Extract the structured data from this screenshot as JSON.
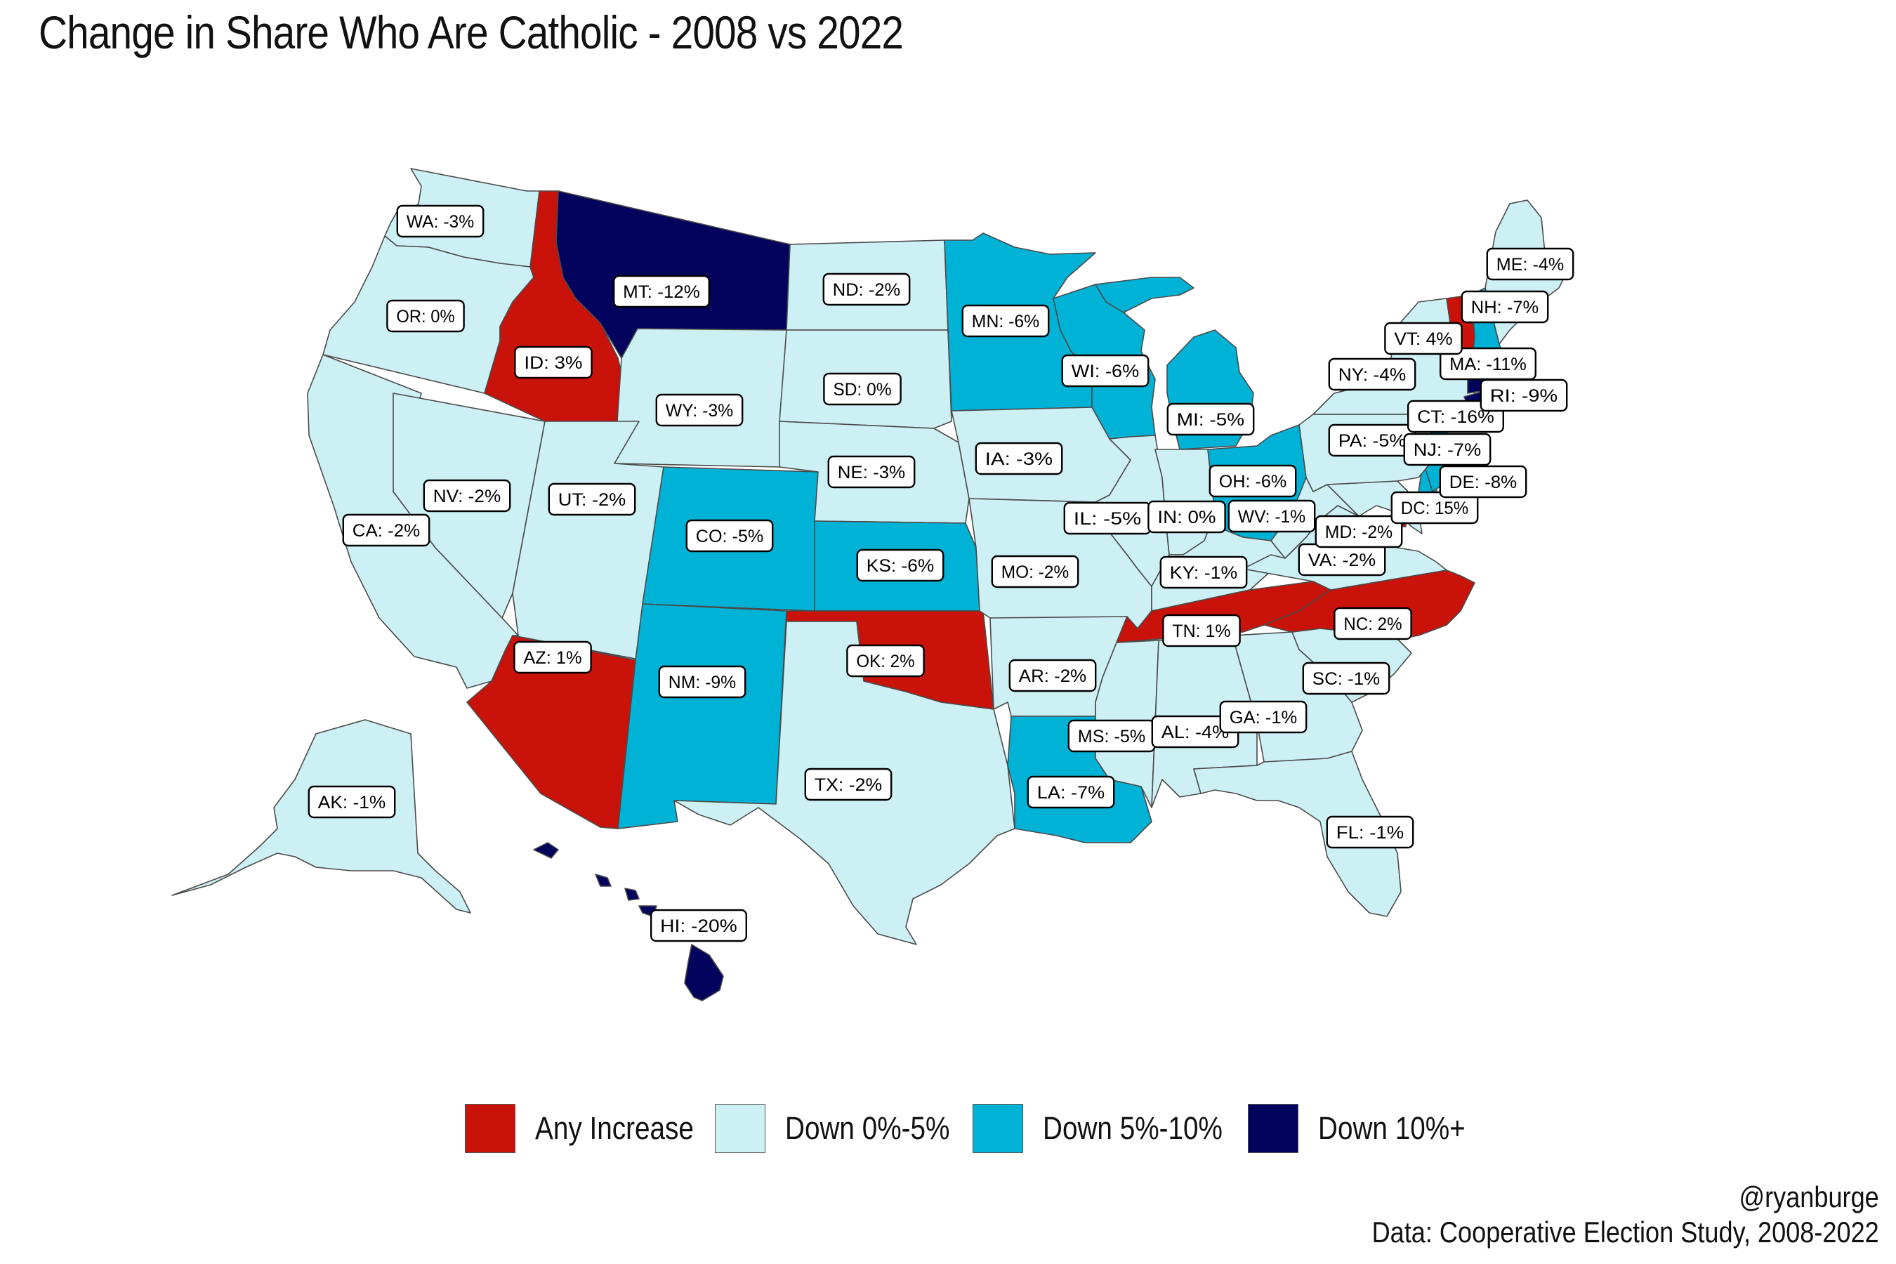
{
  "title": "Change in Share Who Are Catholic - 2008 vs 2022",
  "colors": {
    "increase": "#c8120a",
    "down0_5": "#cdf0f5",
    "down5_10": "#00b2d5",
    "down10plus": "#03035e",
    "border": "#4a4a4a"
  },
  "legend": [
    {
      "label": "Any Increase",
      "color": "#c8120a"
    },
    {
      "label": "Down 0%-5%",
      "color": "#cdf0f5"
    },
    {
      "label": "Down 5%-10%",
      "color": "#00b2d5"
    },
    {
      "label": "Down 10%+",
      "color": "#03035e"
    }
  ],
  "states": [
    {
      "abbr": "WA",
      "label": "WA: -3%",
      "change": -3,
      "category": "down0_5"
    },
    {
      "abbr": "OR",
      "label": "OR: 0%",
      "change": 0,
      "category": "down0_5"
    },
    {
      "abbr": "CA",
      "label": "CA: -2%",
      "change": -2,
      "category": "down0_5"
    },
    {
      "abbr": "NV",
      "label": "NV: -2%",
      "change": -2,
      "category": "down0_5"
    },
    {
      "abbr": "ID",
      "label": "ID: 3%",
      "change": 3,
      "category": "increase"
    },
    {
      "abbr": "MT",
      "label": "MT: -12%",
      "change": -12,
      "category": "down10plus"
    },
    {
      "abbr": "WY",
      "label": "WY: -3%",
      "change": -3,
      "category": "down0_5"
    },
    {
      "abbr": "UT",
      "label": "UT: -2%",
      "change": -2,
      "category": "down0_5"
    },
    {
      "abbr": "AZ",
      "label": "AZ: 1%",
      "change": 1,
      "category": "increase"
    },
    {
      "abbr": "CO",
      "label": "CO: -5%",
      "change": -5,
      "category": "down5_10"
    },
    {
      "abbr": "NM",
      "label": "NM: -9%",
      "change": -9,
      "category": "down5_10"
    },
    {
      "abbr": "ND",
      "label": "ND: -2%",
      "change": -2,
      "category": "down0_5"
    },
    {
      "abbr": "SD",
      "label": "SD: 0%",
      "change": 0,
      "category": "down0_5"
    },
    {
      "abbr": "NE",
      "label": "NE: -3%",
      "change": -3,
      "category": "down0_5"
    },
    {
      "abbr": "KS",
      "label": "KS: -6%",
      "change": -6,
      "category": "down5_10"
    },
    {
      "abbr": "OK",
      "label": "OK: 2%",
      "change": 2,
      "category": "increase"
    },
    {
      "abbr": "TX",
      "label": "TX: -2%",
      "change": -2,
      "category": "down0_5"
    },
    {
      "abbr": "MN",
      "label": "MN: -6%",
      "change": -6,
      "category": "down5_10"
    },
    {
      "abbr": "IA",
      "label": "IA: -3%",
      "change": -3,
      "category": "down0_5"
    },
    {
      "abbr": "MO",
      "label": "MO: -2%",
      "change": -2,
      "category": "down0_5"
    },
    {
      "abbr": "AR",
      "label": "AR: -2%",
      "change": -2,
      "category": "down0_5"
    },
    {
      "abbr": "LA",
      "label": "LA: -7%",
      "change": -7,
      "category": "down5_10"
    },
    {
      "abbr": "WI",
      "label": "WI: -6%",
      "change": -6,
      "category": "down5_10"
    },
    {
      "abbr": "IL",
      "label": "IL: -5%",
      "change": -5,
      "category": "down0_5"
    },
    {
      "abbr": "MI",
      "label": "MI: -5%",
      "change": -5,
      "category": "down5_10"
    },
    {
      "abbr": "IN",
      "label": "IN: 0%",
      "change": 0,
      "category": "down0_5"
    },
    {
      "abbr": "OH",
      "label": "OH: -6%",
      "change": -6,
      "category": "down5_10"
    },
    {
      "abbr": "KY",
      "label": "KY: -1%",
      "change": -1,
      "category": "down0_5"
    },
    {
      "abbr": "TN",
      "label": "TN: 1%",
      "change": 1,
      "category": "increase"
    },
    {
      "abbr": "MS",
      "label": "MS: -5%",
      "change": -5,
      "category": "down0_5"
    },
    {
      "abbr": "AL",
      "label": "AL: -4%",
      "change": -4,
      "category": "down0_5"
    },
    {
      "abbr": "GA",
      "label": "GA: -1%",
      "change": -1,
      "category": "down0_5"
    },
    {
      "abbr": "FL",
      "label": "FL: -1%",
      "change": -1,
      "category": "down0_5"
    },
    {
      "abbr": "SC",
      "label": "SC: -1%",
      "change": -1,
      "category": "down0_5"
    },
    {
      "abbr": "NC",
      "label": "NC: 2%",
      "change": 2,
      "category": "increase"
    },
    {
      "abbr": "VA",
      "label": "VA: -2%",
      "change": -2,
      "category": "down0_5"
    },
    {
      "abbr": "WV",
      "label": "WV: -1%",
      "change": -1,
      "category": "down0_5"
    },
    {
      "abbr": "MD",
      "label": "MD: -2%",
      "change": -2,
      "category": "down0_5"
    },
    {
      "abbr": "DC",
      "label": "DC: 15%",
      "change": 15,
      "category": "increase"
    },
    {
      "abbr": "DE",
      "label": "DE: -8%",
      "change": -8,
      "category": "down5_10"
    },
    {
      "abbr": "PA",
      "label": "PA: -5%",
      "change": -5,
      "category": "down0_5"
    },
    {
      "abbr": "NJ",
      "label": "NJ: -7%",
      "change": -7,
      "category": "down5_10"
    },
    {
      "abbr": "NY",
      "label": "NY: -4%",
      "change": -4,
      "category": "down0_5"
    },
    {
      "abbr": "CT",
      "label": "CT: -16%",
      "change": -16,
      "category": "down10plus"
    },
    {
      "abbr": "RI",
      "label": "RI: -9%",
      "change": -9,
      "category": "down5_10"
    },
    {
      "abbr": "MA",
      "label": "MA: -11%",
      "change": -11,
      "category": "down10plus"
    },
    {
      "abbr": "VT",
      "label": "VT: 4%",
      "change": 4,
      "category": "increase"
    },
    {
      "abbr": "NH",
      "label": "NH: -7%",
      "change": -7,
      "category": "down5_10"
    },
    {
      "abbr": "ME",
      "label": "ME: -4%",
      "change": -4,
      "category": "down0_5"
    },
    {
      "abbr": "AK",
      "label": "AK: -1%",
      "change": -1,
      "category": "down0_5"
    },
    {
      "abbr": "HI",
      "label": "HI: -20%",
      "change": -20,
      "category": "down10plus"
    }
  ],
  "credit": {
    "handle": "@ryanburge",
    "source": "Data: Cooperative Election Study, 2008-2022"
  }
}
